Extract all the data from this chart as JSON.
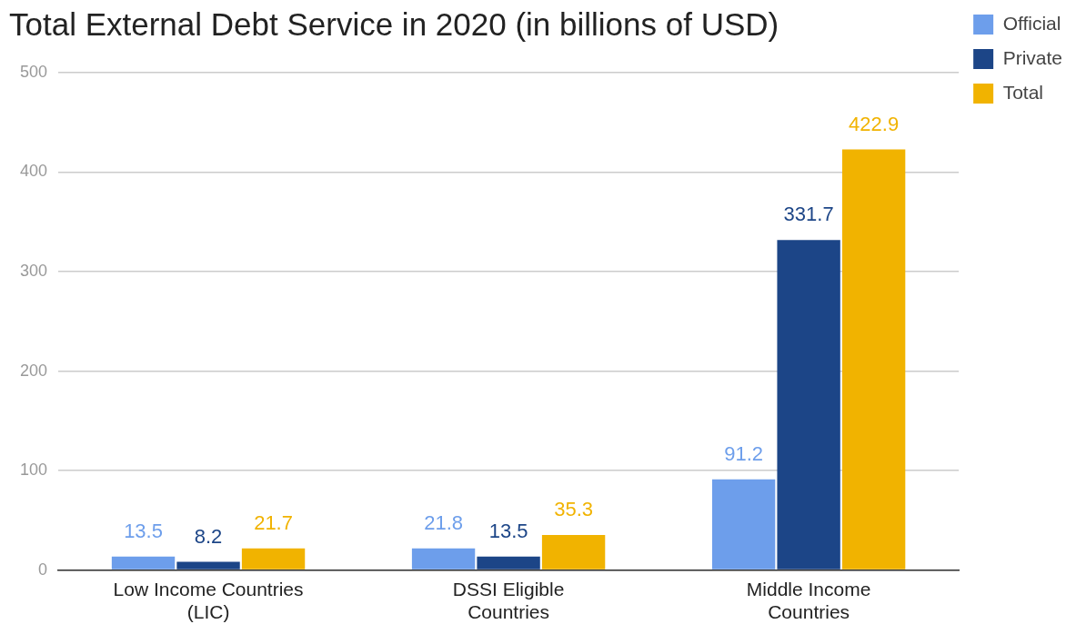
{
  "chart_data": {
    "type": "bar",
    "title": "Total External Debt Service in 2020 (in billions of USD)",
    "categories": [
      "Low Income Countries (LIC)",
      "DSSI Eligible Countries",
      "Middle Income Countries"
    ],
    "series": [
      {
        "name": "Official",
        "color": "#6d9eeb",
        "values": [
          13.5,
          21.8,
          91.2
        ]
      },
      {
        "name": "Private",
        "color": "#1c4587",
        "values": [
          8.2,
          13.5,
          331.7
        ]
      },
      {
        "name": "Total",
        "color": "#f1b300",
        "values": [
          21.7,
          35.3,
          422.9
        ]
      }
    ],
    "ylim": [
      0,
      500
    ],
    "yticks": [
      0,
      100,
      200,
      300,
      400,
      500
    ],
    "grid": "y",
    "legend": "right",
    "data_labels": true
  }
}
